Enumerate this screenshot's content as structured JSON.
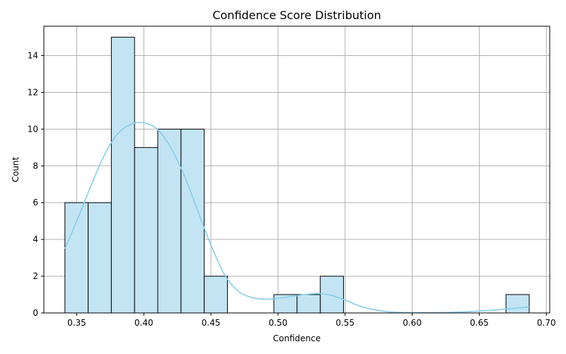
{
  "chart_data": {
    "type": "bar",
    "title": "Confidence Score Distribution",
    "xlabel": "Confidence",
    "ylabel": "Count",
    "xlim": [
      0.3255,
      0.7025
    ],
    "ylim": [
      0,
      15.6
    ],
    "xticks": [
      "0.35",
      "0.40",
      "0.45",
      "0.50",
      "0.55",
      "0.60",
      "0.65",
      "0.70"
    ],
    "yticks": [
      "0",
      "2",
      "4",
      "6",
      "8",
      "10",
      "12",
      "14"
    ],
    "grid": true,
    "bins": [
      {
        "x0": 0.3412,
        "x1": 0.3585,
        "count": 6
      },
      {
        "x0": 0.3585,
        "x1": 0.3758,
        "count": 6
      },
      {
        "x0": 0.3758,
        "x1": 0.3931,
        "count": 15
      },
      {
        "x0": 0.3931,
        "x1": 0.4104,
        "count": 9
      },
      {
        "x0": 0.4104,
        "x1": 0.4277,
        "count": 10
      },
      {
        "x0": 0.4277,
        "x1": 0.445,
        "count": 10
      },
      {
        "x0": 0.445,
        "x1": 0.4623,
        "count": 2
      },
      {
        "x0": 0.4969,
        "x1": 0.5142,
        "count": 1
      },
      {
        "x0": 0.5142,
        "x1": 0.5315,
        "count": 1
      },
      {
        "x0": 0.5315,
        "x1": 0.5488,
        "count": 2
      },
      {
        "x0": 0.6699,
        "x1": 0.6872,
        "count": 1
      }
    ],
    "kde": {
      "x": [
        0.3412,
        0.35,
        0.36,
        0.37,
        0.38,
        0.39,
        0.4,
        0.41,
        0.42,
        0.43,
        0.44,
        0.45,
        0.46,
        0.47,
        0.48,
        0.49,
        0.5,
        0.51,
        0.52,
        0.53,
        0.54,
        0.55,
        0.56,
        0.57,
        0.58,
        0.59,
        0.6,
        0.62,
        0.64,
        0.66,
        0.68,
        0.6872
      ],
      "y": [
        3.5,
        5.0,
        6.8,
        8.5,
        9.7,
        10.25,
        10.35,
        10.0,
        9.0,
        7.5,
        5.6,
        3.7,
        2.1,
        1.2,
        0.85,
        0.75,
        0.8,
        0.9,
        1.0,
        1.05,
        0.95,
        0.7,
        0.4,
        0.2,
        0.08,
        0.03,
        0.02,
        0.02,
        0.06,
        0.15,
        0.28,
        0.32
      ]
    },
    "colors": {
      "bar_fill": "#c3e4f3",
      "bar_edge": "#000000",
      "kde": "#87ceeb",
      "grid": "#b0b0b0"
    }
  }
}
